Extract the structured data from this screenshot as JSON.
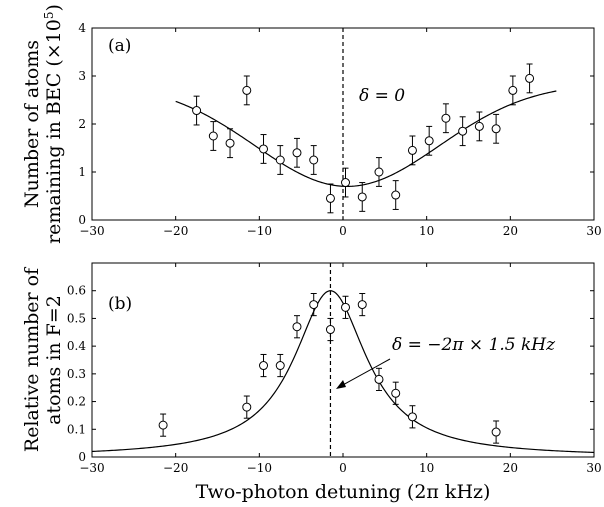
{
  "chart_data": [
    {
      "type": "scatter",
      "panel_tag": "(a)",
      "ylabel_line1": "Number of atoms",
      "ylabel_line2": "remaining in BEC (×10",
      "ylabel_exp": "5",
      "ylabel_close": ")",
      "xlim": [
        -30,
        30
      ],
      "ylim": [
        0,
        4
      ],
      "xticks": [
        "−30",
        "−20",
        "−10",
        "0",
        "10",
        "20",
        "30"
      ],
      "yticks": [
        "0",
        "1",
        "2",
        "3",
        "4"
      ],
      "annotation": "δ = 0",
      "dashed_line_x": 0,
      "points": [
        {
          "x": -17.5,
          "y": 2.28,
          "err": 0.3
        },
        {
          "x": -15.5,
          "y": 1.75,
          "err": 0.3
        },
        {
          "x": -13.5,
          "y": 1.6,
          "err": 0.3
        },
        {
          "x": -11.5,
          "y": 2.7,
          "err": 0.3
        },
        {
          "x": -9.5,
          "y": 1.48,
          "err": 0.3
        },
        {
          "x": -7.5,
          "y": 1.25,
          "err": 0.3
        },
        {
          "x": -5.5,
          "y": 1.4,
          "err": 0.3
        },
        {
          "x": -3.5,
          "y": 1.25,
          "err": 0.3
        },
        {
          "x": -1.5,
          "y": 0.45,
          "err": 0.3
        },
        {
          "x": 0.3,
          "y": 0.78,
          "err": 0.3
        },
        {
          "x": 2.3,
          "y": 0.48,
          "err": 0.3
        },
        {
          "x": 4.3,
          "y": 1.0,
          "err": 0.3
        },
        {
          "x": 6.3,
          "y": 0.52,
          "err": 0.3
        },
        {
          "x": 8.3,
          "y": 1.45,
          "err": 0.3
        },
        {
          "x": 10.3,
          "y": 1.65,
          "err": 0.3
        },
        {
          "x": 12.3,
          "y": 2.12,
          "err": 0.3
        },
        {
          "x": 14.3,
          "y": 1.85,
          "err": 0.3
        },
        {
          "x": 16.3,
          "y": 1.95,
          "err": 0.3
        },
        {
          "x": 18.3,
          "y": 1.9,
          "err": 0.3
        },
        {
          "x": 20.3,
          "y": 2.7,
          "err": 0.3
        },
        {
          "x": 22.3,
          "y": 2.95,
          "err": 0.3
        }
      ],
      "fit": {
        "type": "inverted-gaussian",
        "x_range": [
          -20,
          25.5
        ],
        "center": 0.5,
        "baseline": 2.85,
        "depth": 2.15,
        "sigma": 11
      }
    },
    {
      "type": "scatter",
      "panel_tag": "(b)",
      "ylabel_line1": "Relative number of",
      "ylabel_line2": "atoms in F=2",
      "xlabel": "Two-photon detuning (2π kHz)",
      "xlim": [
        -30,
        30
      ],
      "ylim": [
        0,
        0.7
      ],
      "xticks": [
        "−30",
        "−20",
        "−10",
        "0",
        "10",
        "20",
        "30"
      ],
      "yticks": [
        "0",
        "0.1",
        "0.2",
        "0.3",
        "0.4",
        "0.5",
        "0.6"
      ],
      "annotation": "δ = −2π × 1.5 kHz",
      "dashed_line_x": -1.5,
      "points": [
        {
          "x": -21.5,
          "y": 0.115,
          "err": 0.04
        },
        {
          "x": -11.5,
          "y": 0.18,
          "err": 0.04
        },
        {
          "x": -9.5,
          "y": 0.33,
          "err": 0.04
        },
        {
          "x": -7.5,
          "y": 0.33,
          "err": 0.04
        },
        {
          "x": -5.5,
          "y": 0.47,
          "err": 0.04
        },
        {
          "x": -3.5,
          "y": 0.55,
          "err": 0.04
        },
        {
          "x": -1.5,
          "y": 0.46,
          "err": 0.04
        },
        {
          "x": 0.3,
          "y": 0.54,
          "err": 0.04
        },
        {
          "x": 2.3,
          "y": 0.55,
          "err": 0.04
        },
        {
          "x": 4.3,
          "y": 0.28,
          "err": 0.04
        },
        {
          "x": 6.3,
          "y": 0.23,
          "err": 0.04
        },
        {
          "x": 8.3,
          "y": 0.145,
          "err": 0.04
        },
        {
          "x": 18.3,
          "y": 0.09,
          "err": 0.04
        }
      ],
      "fit": {
        "type": "lorentzian",
        "x_range": [
          -30,
          30
        ],
        "center": -1.5,
        "amplitude": 0.6,
        "gamma": 5.3
      }
    }
  ]
}
